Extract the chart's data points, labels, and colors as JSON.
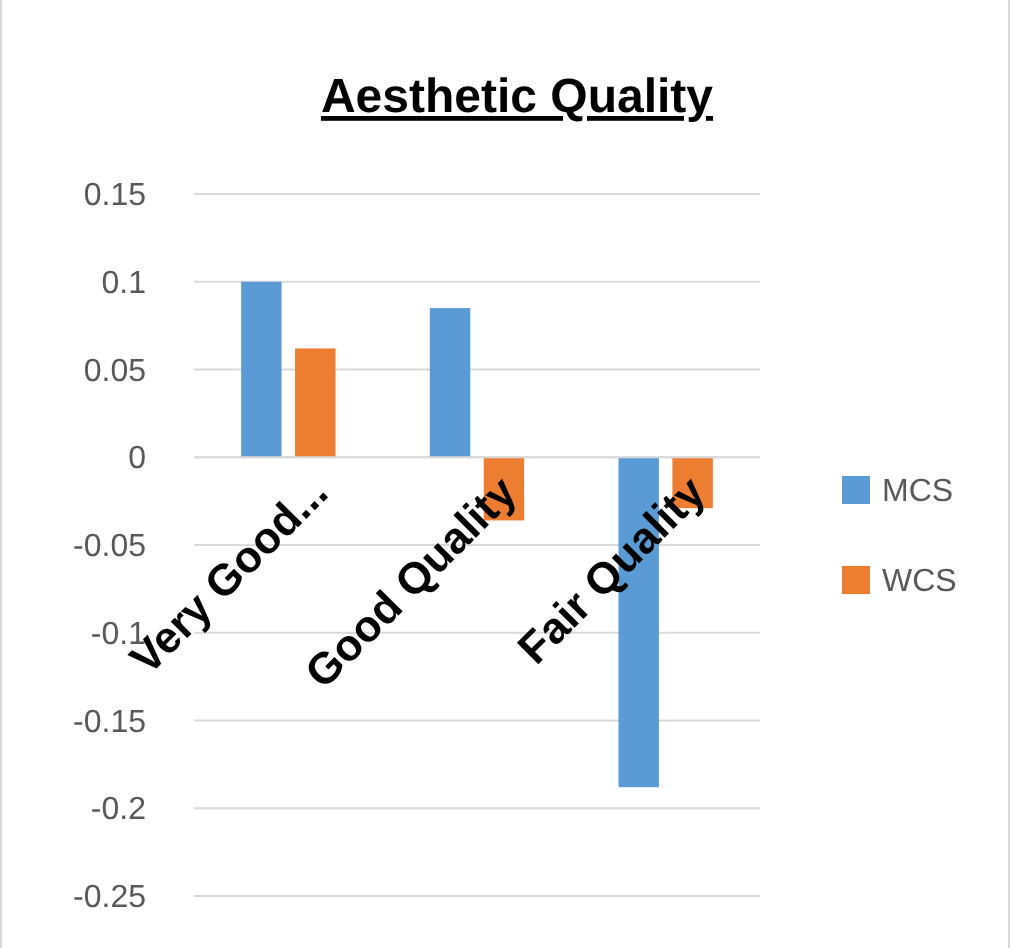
{
  "chart_data": {
    "type": "bar",
    "title": "Aesthetic Quality",
    "categories": [
      "Very Good...",
      "Good Quality",
      "Fair Quality"
    ],
    "series": [
      {
        "name": "MCS",
        "color": "#5b9bd5",
        "values": [
          0.1,
          0.085,
          -0.188
        ]
      },
      {
        "name": "WCS",
        "color": "#ed7d31",
        "values": [
          0.062,
          -0.036,
          -0.029
        ]
      }
    ],
    "ylim": [
      -0.25,
      0.15
    ],
    "yticks": [
      0.15,
      0.1,
      0.05,
      0,
      -0.05,
      -0.1,
      -0.15,
      -0.2,
      -0.25
    ],
    "grid": "y",
    "legend": "right"
  }
}
